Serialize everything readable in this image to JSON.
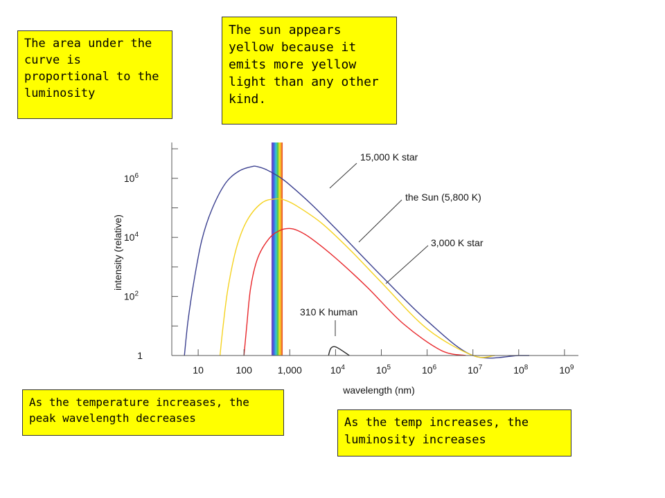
{
  "notes": {
    "area": "The area under the curve is proportional to the luminosity",
    "sun": "The sun appears yellow because it emits more yellow light than any other kind.",
    "temp": "As the temperature increases, the peak wavelength decreases",
    "lum": "As the temp increases, the luminosity increases"
  },
  "chart_data": {
    "type": "line",
    "title": "",
    "xlabel": "wavelength (nm)",
    "ylabel": "intensity (relative)",
    "x_scale": "log",
    "y_scale": "log",
    "xlim": [
      1,
      1000000000
    ],
    "ylim": [
      1,
      100000000
    ],
    "grid": false,
    "x_ticks": [
      {
        "value": 10,
        "base": "10",
        "exp": ""
      },
      {
        "value": 100,
        "base": "100",
        "exp": ""
      },
      {
        "value": 1000,
        "base": "1,000",
        "exp": ""
      },
      {
        "value": 10000,
        "base": "10",
        "exp": "4"
      },
      {
        "value": 100000,
        "base": "10",
        "exp": "5"
      },
      {
        "value": 1000000,
        "base": "10",
        "exp": "6"
      },
      {
        "value": 10000000,
        "base": "10",
        "exp": "7"
      },
      {
        "value": 100000000,
        "base": "10",
        "exp": "8"
      },
      {
        "value": 1000000000,
        "base": "10",
        "exp": "9"
      }
    ],
    "y_ticks": [
      {
        "value": 1,
        "base": "1",
        "exp": ""
      },
      {
        "value": 100,
        "base": "10",
        "exp": "2"
      },
      {
        "value": 10000,
        "base": "10",
        "exp": "4"
      },
      {
        "value": 1000000,
        "base": "10",
        "exp": "6"
      }
    ],
    "visible_band": {
      "from": 400,
      "to": 700
    },
    "series": [
      {
        "name": "15,000 K star",
        "color": "#3a3f8f",
        "temperature": 15000,
        "peak_wavelength": 193,
        "peak_intensity": 2500000,
        "x": [
          5,
          6,
          8,
          12,
          20,
          40,
          80,
          150,
          193,
          300,
          600,
          1000,
          3000,
          10000,
          100000,
          1000000,
          10000000,
          100000000,
          170000000
        ],
        "y": [
          1,
          15,
          300,
          8000,
          90000,
          700000,
          1800000,
          2500000,
          2500000,
          2000000,
          1100000,
          600000,
          130000,
          20000,
          500,
          15,
          1,
          1,
          1
        ]
      },
      {
        "name": "the Sun (5,800 K)",
        "color": "#f5d21e",
        "temperature": 5800,
        "peak_wavelength": 500,
        "peak_intensity": 200000,
        "x": [
          30,
          35,
          45,
          70,
          120,
          250,
          500,
          800,
          1500,
          5000,
          20000,
          100000,
          1000000,
          10000000,
          30000000
        ],
        "y": [
          1,
          10,
          200,
          5000,
          40000,
          150000,
          200000,
          180000,
          110000,
          30000,
          4000,
          300,
          8,
          1,
          1
        ]
      },
      {
        "name": "3,000 K star",
        "color": "#e8262a",
        "temperature": 3000,
        "peak_wavelength": 966,
        "peak_intensity": 20000,
        "x": [
          100,
          115,
          140,
          200,
          350,
          600,
          966,
          1500,
          3000,
          10000,
          50000,
          300000,
          2000000,
          7000000
        ],
        "y": [
          1,
          10,
          200,
          2000,
          9000,
          17000,
          20000,
          17000,
          9000,
          2000,
          200,
          12,
          1.5,
          1
        ]
      },
      {
        "name": "310 K human",
        "color": "#222222",
        "temperature": 310,
        "peak_wavelength": 9300,
        "peak_intensity": 2,
        "x": [
          7000,
          7800,
          9300,
          12000,
          20000
        ],
        "y": [
          1,
          1.7,
          2,
          1.7,
          1
        ]
      }
    ]
  }
}
